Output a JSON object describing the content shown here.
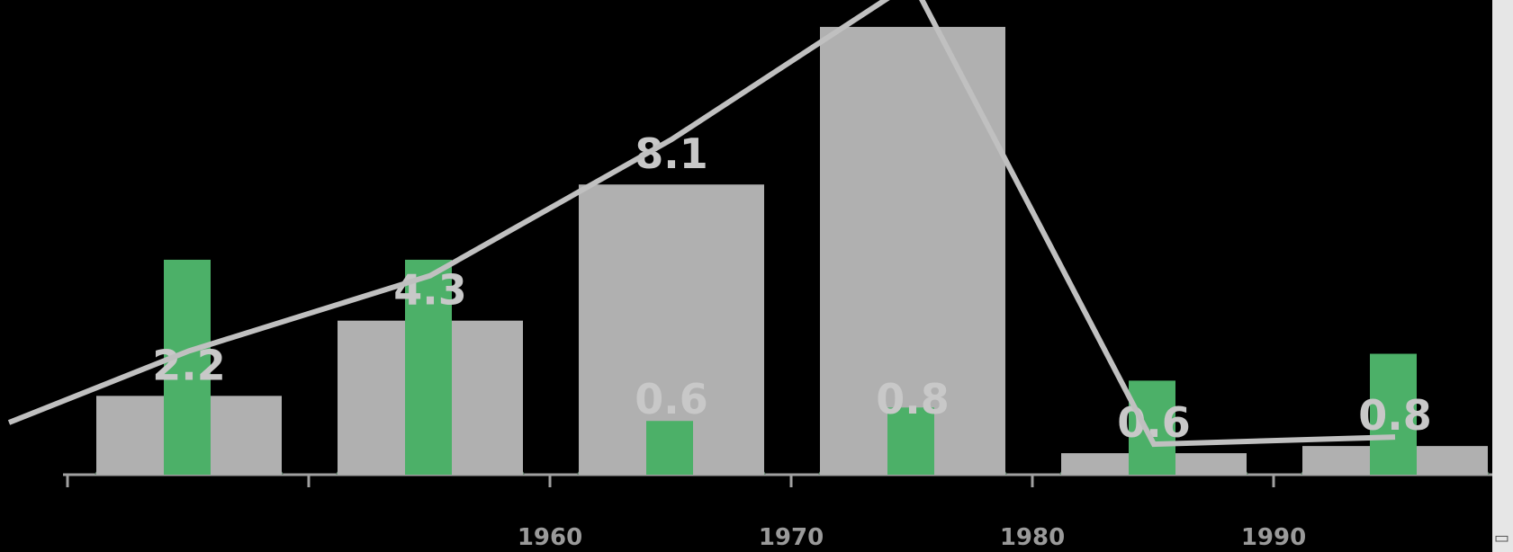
{
  "chart_data": {
    "type": "bar",
    "categories": [
      "",
      "",
      "1960",
      "1970",
      "1980",
      "1990"
    ],
    "series": [
      {
        "values": [
          2.2,
          4.3,
          8.1,
          12.5,
          0.6,
          0.8
        ]
      },
      {
        "values": [
          0.8,
          0.8,
          0.2,
          0.25,
          0.35,
          0.45
        ]
      }
    ],
    "data_labels": [
      "2.2",
      "4.3",
      "8.1",
      "",
      "0.6",
      "0.8"
    ],
    "inner_labels": [
      "",
      "",
      "0.6",
      "0.8",
      "",
      ""
    ],
    "ylim": [
      0,
      13
    ],
    "grid": false,
    "colors": {
      "background": "#000000",
      "bar": "#b0b0b0",
      "sub_bar": "#4cb068",
      "trend": "#c0c0c0",
      "axis": "#a0a0a0",
      "base_shape": "#6f8f78"
    }
  }
}
